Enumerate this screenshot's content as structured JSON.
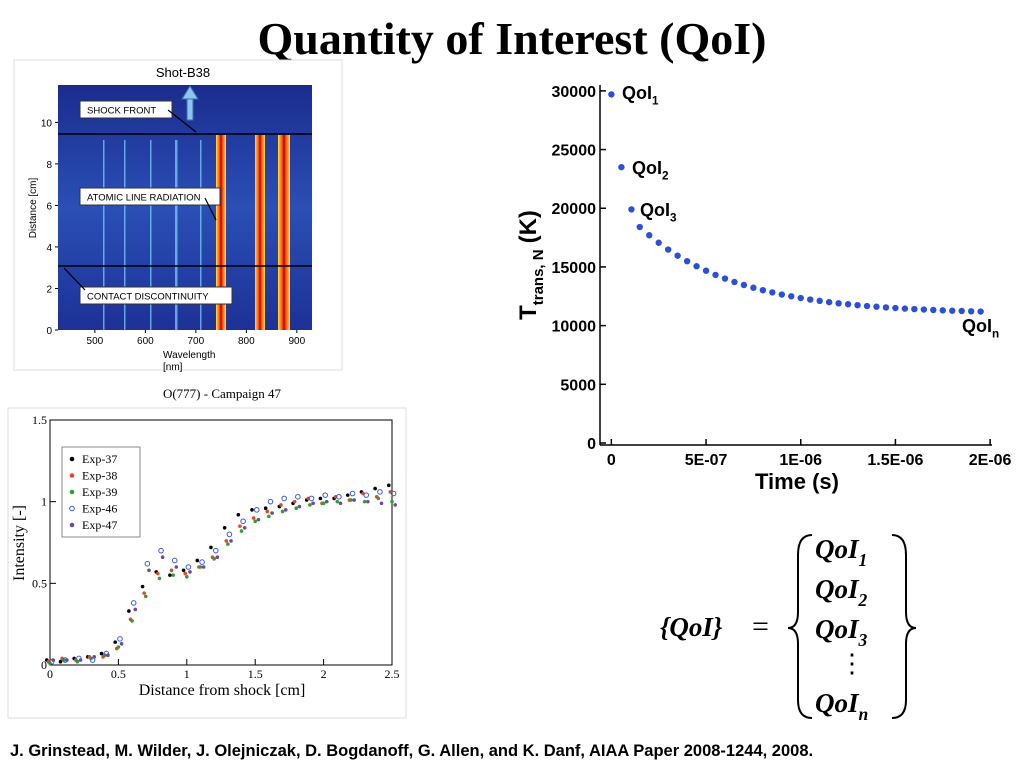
{
  "title": "Quantity of Interest (QoI)",
  "citation": "J. Grinstead, M. Wilder, J. Olejniczak, D. Bogdanoff, G. Allen, and K. Danf, AIAA Paper 2008-1244, 2008.",
  "equation": {
    "lhs": "{QoI}",
    "relation": "=",
    "rows": [
      {
        "text": "QoI",
        "sub": "1"
      },
      {
        "text": "QoI",
        "sub": "2"
      },
      {
        "text": "QoI",
        "sub": "3"
      },
      {
        "text": "⋮"
      },
      {
        "text": "QoI",
        "sub": "n"
      }
    ]
  },
  "chart_data": [
    {
      "type": "scatter",
      "xlabel": "Time (s)",
      "ylabel": {
        "text": "T",
        "sub": "trans, N",
        "unit": "(K)"
      },
      "xlim": [
        -6e-08,
        2.01e-06
      ],
      "ylim": [
        0,
        30500
      ],
      "xticks": [
        0,
        {
          "value": 5e-07,
          "label": "5E-07"
        },
        {
          "value": 1e-06,
          "label": "1E-06"
        },
        {
          "value": 1.5e-06,
          "label": "1.5E-06"
        },
        {
          "value": 2e-06,
          "label": "2E-06"
        }
      ],
      "yticks": [
        0,
        5000,
        10000,
        15000,
        20000,
        25000,
        30000
      ],
      "color": "#2b4fd8",
      "x": [
        0,
        5.3e-08,
        1.06e-07,
        1.5e-07,
        2e-07,
        2.5e-07,
        3e-07,
        3.5e-07,
        4e-07,
        4.5e-07,
        5e-07,
        5.5e-07,
        6e-07,
        6.5e-07,
        7e-07,
        7.5e-07,
        8e-07,
        8.5e-07,
        9e-07,
        9.5e-07,
        1e-06,
        1.05e-06,
        1.1e-06,
        1.15e-06,
        1.2e-06,
        1.25e-06,
        1.3e-06,
        1.35e-06,
        1.4e-06,
        1.45e-06,
        1.5e-06,
        1.55e-06,
        1.6e-06,
        1.65e-06,
        1.7e-06,
        1.75e-06,
        1.8e-06,
        1.85e-06,
        1.9e-06,
        1.95e-06
      ],
      "values": [
        29700,
        23500,
        19900,
        18400,
        17700,
        17060,
        16480,
        15960,
        15490,
        15060,
        14680,
        14320,
        14010,
        13720,
        13460,
        13230,
        13020,
        12830,
        12650,
        12500,
        12350,
        12220,
        12110,
        12000,
        11900,
        11820,
        11740,
        11670,
        11610,
        11550,
        11500,
        11450,
        11410,
        11370,
        11330,
        11300,
        11270,
        11250,
        11220,
        11200
      ],
      "annotations": [
        {
          "text": "QoI",
          "sub": "1"
        },
        {
          "text": "QoI",
          "sub": "2"
        },
        {
          "text": "QoI",
          "sub": "3"
        },
        {
          "text": "QoI",
          "sub": "n"
        }
      ]
    },
    {
      "type": "scatter",
      "xlabel": "Distance from shock [cm]",
      "ylabel": "Intensity [-]",
      "xlim": [
        0,
        2.5
      ],
      "ylim": [
        0,
        1.5
      ],
      "xticks": [
        0,
        0.5,
        1,
        1.5,
        2,
        2.5
      ],
      "yticks": [
        0,
        0.5,
        1,
        1.5
      ],
      "legend": "upper left",
      "x": [
        0,
        0.1,
        0.2,
        0.3,
        0.4,
        0.5,
        0.6,
        0.7,
        0.8,
        0.9,
        1,
        1.1,
        1.2,
        1.3,
        1.4,
        1.5,
        1.6,
        1.7,
        1.8,
        1.9,
        2,
        2.1,
        2.2,
        2.3,
        2.4,
        2.5
      ],
      "series": [
        {
          "name": "Exp-37",
          "color": "#000000",
          "marker": "dot",
          "values": [
            0.03,
            0.02,
            0.04,
            0.05,
            0.07,
            0.14,
            0.33,
            0.48,
            0.57,
            0.55,
            0.58,
            0.64,
            0.72,
            0.84,
            0.92,
            0.95,
            0.96,
            0.97,
            0.99,
            1.01,
            1.02,
            1.02,
            1.04,
            1.06,
            1.08,
            1.1
          ]
        },
        {
          "name": "Exp-38",
          "color": "#e0472b",
          "marker": "dot",
          "values": [
            0.02,
            0.04,
            0.03,
            0.05,
            0.05,
            0.1,
            0.28,
            0.44,
            0.56,
            0.58,
            0.56,
            0.6,
            0.66,
            0.76,
            0.85,
            0.9,
            0.94,
            0.98,
            1.0,
            1.02,
            0.99,
            1.03,
            1.01,
            1.05,
            1.03,
            1.06
          ]
        },
        {
          "name": "Exp-39",
          "color": "#2ea02e",
          "marker": "dot",
          "values": [
            0.01,
            0.03,
            0.02,
            0.04,
            0.06,
            0.11,
            0.27,
            0.42,
            0.53,
            0.55,
            0.54,
            0.6,
            0.65,
            0.74,
            0.82,
            0.88,
            0.91,
            0.94,
            0.96,
            0.98,
            0.99,
            1.0,
            1.01,
            1.0,
            1.02,
            1.0
          ]
        },
        {
          "name": "Exp-46",
          "color": "#3b5bdb",
          "marker": "open",
          "values": [
            0.02,
            0.03,
            0.04,
            0.03,
            0.07,
            0.16,
            0.38,
            0.62,
            0.7,
            0.64,
            0.6,
            0.63,
            0.7,
            0.8,
            0.88,
            0.95,
            1.0,
            1.02,
            1.03,
            1.02,
            1.04,
            1.03,
            1.05,
            1.04,
            1.06,
            1.05
          ]
        },
        {
          "name": "Exp-47",
          "color": "#6a4ba0",
          "marker": "dot",
          "values": [
            0.03,
            0.03,
            0.03,
            0.05,
            0.06,
            0.13,
            0.34,
            0.58,
            0.66,
            0.6,
            0.57,
            0.6,
            0.66,
            0.76,
            0.84,
            0.89,
            0.93,
            0.95,
            0.97,
            0.99,
            1.0,
            0.99,
            1.01,
            1.0,
            0.99,
            0.98
          ]
        }
      ]
    },
    {
      "type": "image",
      "title": "Shot-B38",
      "xlabel": "Wavelength",
      "xunit": "[nm]",
      "ylabel": "Distance [cm]",
      "xlim": [
        427,
        930
      ],
      "ylim": [
        0,
        11.8
      ],
      "xticks": [
        500,
        600,
        700,
        800,
        900
      ],
      "yticks": [
        0,
        2,
        4,
        6,
        8,
        10
      ],
      "annotations": [
        "SHOCK FRONT",
        "ATOMIC LINE RADIATION",
        "CONTACT DISCONTINUITY"
      ],
      "caption": "O(777) - Campaign 47"
    }
  ]
}
